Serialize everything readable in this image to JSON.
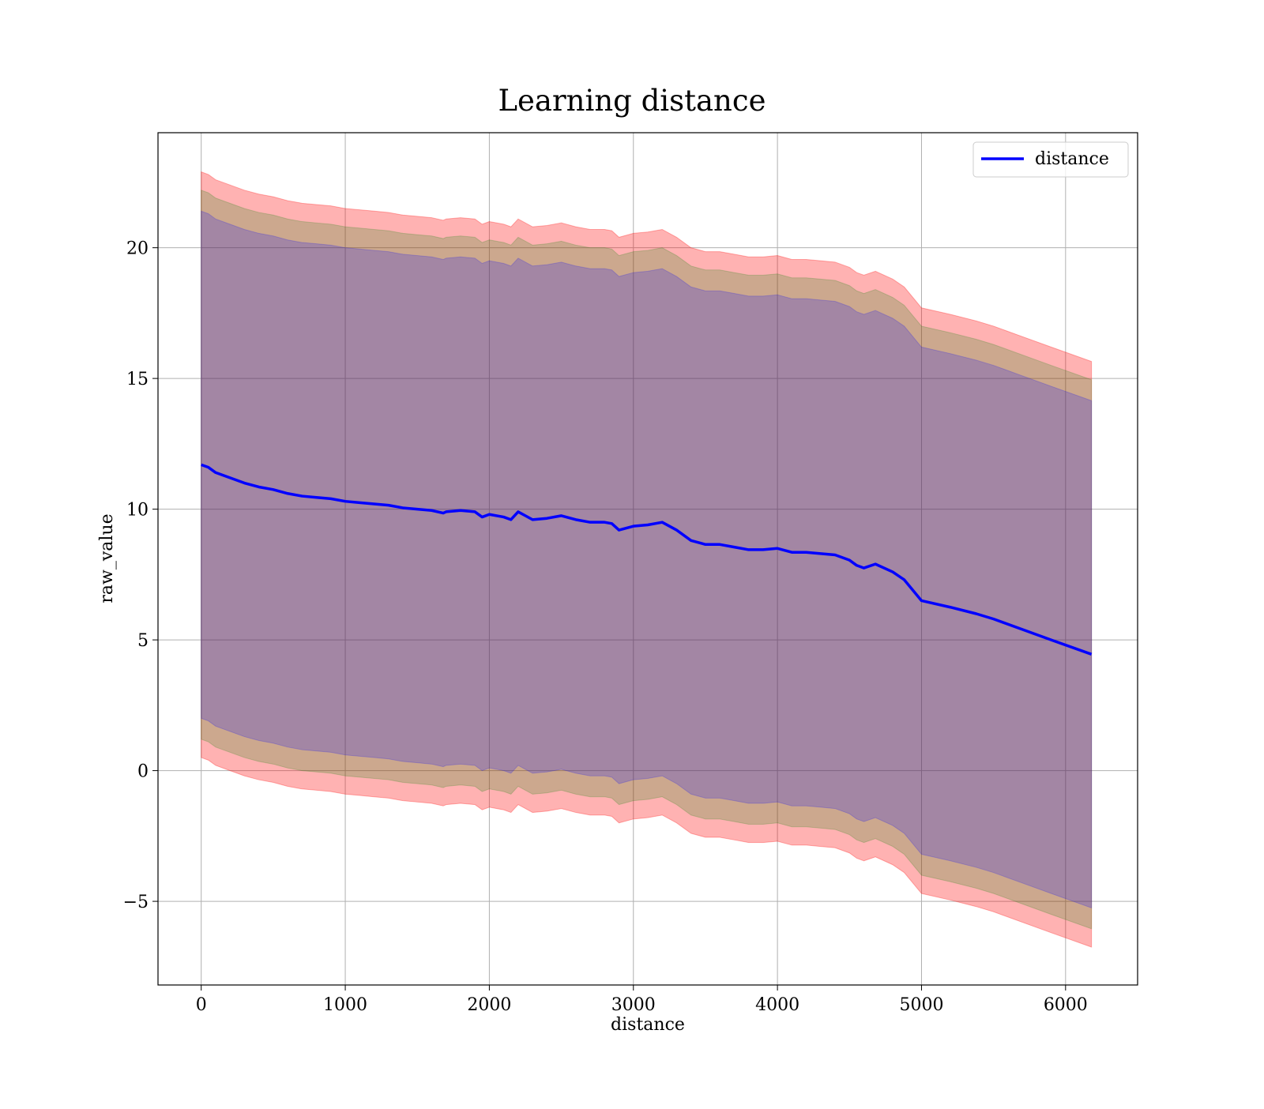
{
  "chart_data": {
    "type": "line",
    "title": "Learning distance",
    "xlabel": "distance",
    "ylabel": "raw_value",
    "xlim": [
      -300,
      6500
    ],
    "ylim": [
      -8.2,
      24.4
    ],
    "xticks": [
      0,
      1000,
      2000,
      3000,
      4000,
      5000,
      6000
    ],
    "xtick_labels": [
      "0",
      "1000",
      "2000",
      "3000",
      "4000",
      "5000",
      "6000"
    ],
    "yticks": [
      -5,
      0,
      5,
      10,
      15,
      20
    ],
    "ytick_labels": [
      "−5",
      "0",
      "5",
      "10",
      "15",
      "20"
    ],
    "grid": true,
    "legend_position": "upper right",
    "series": [
      {
        "name": "distance",
        "color": "#0000ff",
        "x": [
          0,
          50,
          100,
          200,
          300,
          400,
          500,
          600,
          700,
          800,
          900,
          1000,
          1100,
          1200,
          1300,
          1400,
          1500,
          1600,
          1680,
          1700,
          1800,
          1900,
          1950,
          2000,
          2100,
          2150,
          2200,
          2250,
          2300,
          2400,
          2500,
          2600,
          2700,
          2800,
          2850,
          2900,
          3000,
          3100,
          3200,
          3300,
          3400,
          3500,
          3600,
          3700,
          3800,
          3900,
          4000,
          4100,
          4200,
          4300,
          4400,
          4500,
          4550,
          4600,
          4680,
          4800,
          4880,
          5000,
          5200,
          5380,
          5500,
          5700,
          5900,
          6180
        ],
        "y": [
          11.7,
          11.6,
          11.4,
          11.2,
          11.0,
          10.85,
          10.75,
          10.6,
          10.5,
          10.45,
          10.4,
          10.3,
          10.25,
          10.2,
          10.15,
          10.05,
          10.0,
          9.95,
          9.85,
          9.9,
          9.95,
          9.9,
          9.7,
          9.8,
          9.7,
          9.6,
          9.9,
          9.75,
          9.6,
          9.65,
          9.75,
          9.6,
          9.5,
          9.5,
          9.45,
          9.2,
          9.35,
          9.4,
          9.5,
          9.2,
          8.8,
          8.65,
          8.65,
          8.55,
          8.45,
          8.45,
          8.5,
          8.35,
          8.35,
          8.3,
          8.25,
          8.05,
          7.85,
          7.75,
          7.9,
          7.6,
          7.3,
          6.5,
          6.25,
          6.0,
          5.8,
          5.4,
          5.0,
          4.45
        ]
      }
    ],
    "bands": [
      {
        "color": "#ff0000",
        "opacity": 0.3,
        "half_width": 11.2
      },
      {
        "color": "#008000",
        "opacity": 0.2,
        "half_width": 10.5
      },
      {
        "color": "#0000ff",
        "opacity": 0.2,
        "half_width": 9.7
      }
    ]
  }
}
